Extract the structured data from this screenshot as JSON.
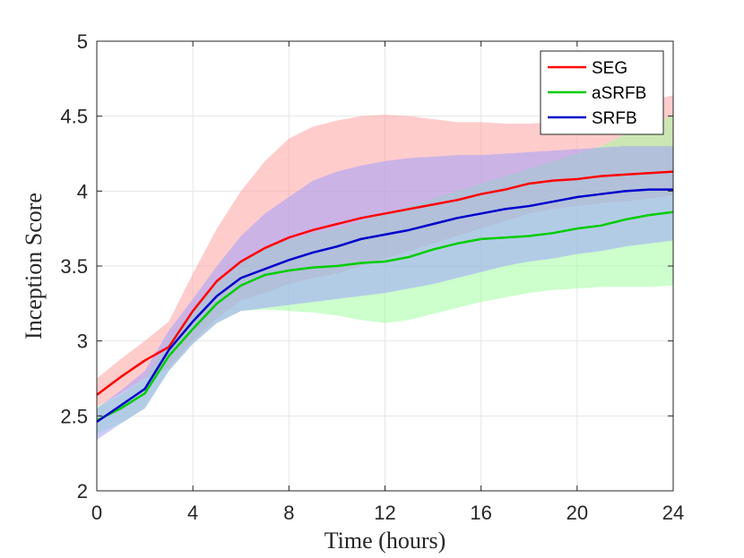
{
  "chart_data": {
    "type": "line",
    "xlabel": "Time (hours)",
    "ylabel": "Inception Score",
    "xlim": [
      0,
      24
    ],
    "ylim": [
      2,
      5
    ],
    "xticks": [
      "0",
      "4",
      "8",
      "12",
      "16",
      "20",
      "24"
    ],
    "yticks": [
      "2",
      "2.5",
      "3",
      "3.5",
      "4",
      "4.5",
      "5"
    ],
    "grid": true,
    "legend_position": "top-right",
    "series": [
      {
        "name": "SEG",
        "color": "#ff0000",
        "band_color": "#ff9999",
        "x": [
          0,
          1,
          2,
          3,
          4,
          5,
          6,
          7,
          8,
          9,
          10,
          11,
          12,
          13,
          14,
          15,
          16,
          17,
          18,
          19,
          20,
          21,
          22,
          23,
          24
        ],
        "y": [
          2.64,
          2.76,
          2.87,
          2.96,
          3.2,
          3.4,
          3.53,
          3.62,
          3.69,
          3.74,
          3.78,
          3.82,
          3.85,
          3.88,
          3.91,
          3.94,
          3.98,
          4.01,
          4.05,
          4.07,
          4.08,
          4.1,
          4.11,
          4.12,
          4.13
        ],
        "upper": [
          2.75,
          2.88,
          3.0,
          3.13,
          3.45,
          3.75,
          4.0,
          4.2,
          4.35,
          4.43,
          4.47,
          4.5,
          4.51,
          4.5,
          4.48,
          4.46,
          4.46,
          4.45,
          4.45,
          4.46,
          4.47,
          4.5,
          4.55,
          4.6,
          4.64
        ],
        "lower": [
          2.56,
          2.65,
          2.75,
          2.82,
          3.0,
          3.15,
          3.27,
          3.32,
          3.38,
          3.42,
          3.45,
          3.5,
          3.55,
          3.6,
          3.65,
          3.7,
          3.75,
          3.8,
          3.85,
          3.88,
          3.9,
          3.92,
          3.93,
          3.95,
          3.97
        ]
      },
      {
        "name": "aSRFB",
        "color": "#00cc00",
        "band_color": "#99ff99",
        "x": [
          0,
          1,
          2,
          3,
          4,
          5,
          6,
          7,
          8,
          9,
          10,
          11,
          12,
          13,
          14,
          15,
          16,
          17,
          18,
          19,
          20,
          21,
          22,
          23,
          24
        ],
        "y": [
          2.47,
          2.55,
          2.65,
          2.9,
          3.08,
          3.25,
          3.37,
          3.44,
          3.47,
          3.49,
          3.5,
          3.52,
          3.53,
          3.56,
          3.61,
          3.65,
          3.68,
          3.69,
          3.7,
          3.72,
          3.75,
          3.77,
          3.81,
          3.84,
          3.86
        ],
        "upper": [
          2.56,
          2.64,
          2.75,
          3.0,
          3.2,
          3.38,
          3.52,
          3.62,
          3.68,
          3.72,
          3.75,
          3.8,
          3.85,
          3.9,
          3.95,
          4.0,
          4.05,
          4.1,
          4.15,
          4.2,
          4.25,
          4.3,
          4.38,
          4.45,
          4.5
        ],
        "lower": [
          2.38,
          2.45,
          2.55,
          2.8,
          2.98,
          3.12,
          3.2,
          3.21,
          3.2,
          3.19,
          3.17,
          3.14,
          3.12,
          3.14,
          3.18,
          3.22,
          3.26,
          3.29,
          3.32,
          3.34,
          3.35,
          3.36,
          3.36,
          3.36,
          3.37
        ]
      },
      {
        "name": "SRFB",
        "color": "#0000cc",
        "band_color": "#9999ff",
        "x": [
          0,
          1,
          2,
          3,
          4,
          5,
          6,
          7,
          8,
          9,
          10,
          11,
          12,
          13,
          14,
          15,
          16,
          17,
          18,
          19,
          20,
          21,
          22,
          23,
          24
        ],
        "y": [
          2.46,
          2.57,
          2.68,
          2.94,
          3.13,
          3.3,
          3.42,
          3.48,
          3.54,
          3.59,
          3.63,
          3.68,
          3.71,
          3.74,
          3.78,
          3.82,
          3.85,
          3.88,
          3.9,
          3.93,
          3.96,
          3.98,
          4.0,
          4.01,
          4.01
        ],
        "upper": [
          2.55,
          2.67,
          2.8,
          3.07,
          3.28,
          3.5,
          3.7,
          3.85,
          3.96,
          4.07,
          4.13,
          4.17,
          4.2,
          4.22,
          4.23,
          4.24,
          4.24,
          4.25,
          4.26,
          4.27,
          4.28,
          4.29,
          4.3,
          4.3,
          4.3
        ],
        "lower": [
          2.34,
          2.45,
          2.55,
          2.8,
          2.98,
          3.12,
          3.2,
          3.22,
          3.24,
          3.26,
          3.28,
          3.3,
          3.32,
          3.35,
          3.38,
          3.42,
          3.46,
          3.5,
          3.53,
          3.55,
          3.58,
          3.6,
          3.63,
          3.65,
          3.67
        ]
      }
    ]
  }
}
